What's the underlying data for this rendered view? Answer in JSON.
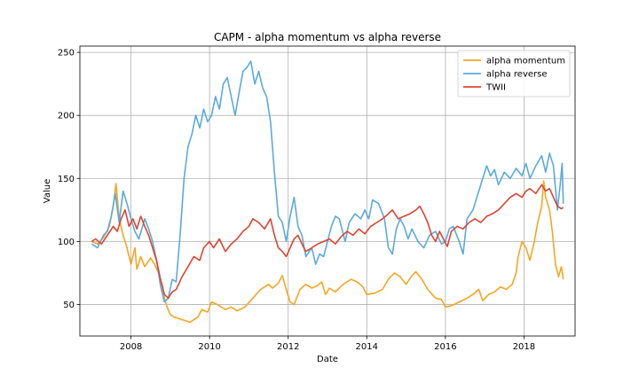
{
  "chart_data": {
    "type": "line",
    "title": "CAPM - alpha momentum vs alpha reverse",
    "xlabel": "Date",
    "ylabel": "Value",
    "xlim": [
      2006.7,
      2019.3
    ],
    "ylim": [
      25,
      255
    ],
    "xticks": [
      2008,
      2010,
      2012,
      2014,
      2016,
      2018
    ],
    "yticks": [
      50,
      100,
      150,
      200,
      250
    ],
    "grid": true,
    "legend_position": "top-right",
    "series": [
      {
        "name": "alpha momentum",
        "color": "#f5a623",
        "points": [
          [
            2007.0,
            100
          ],
          [
            2007.15,
            98
          ],
          [
            2007.3,
            103
          ],
          [
            2007.45,
            112
          ],
          [
            2007.55,
            128
          ],
          [
            2007.62,
            146
          ],
          [
            2007.7,
            118
          ],
          [
            2007.8,
            105
          ],
          [
            2007.9,
            95
          ],
          [
            2008.0,
            82
          ],
          [
            2008.1,
            95
          ],
          [
            2008.15,
            78
          ],
          [
            2008.25,
            88
          ],
          [
            2008.35,
            80
          ],
          [
            2008.5,
            87
          ],
          [
            2008.6,
            82
          ],
          [
            2008.7,
            75
          ],
          [
            2008.8,
            65
          ],
          [
            2008.85,
            55
          ],
          [
            2008.92,
            48
          ],
          [
            2009.0,
            42
          ],
          [
            2009.1,
            40
          ],
          [
            2009.3,
            38
          ],
          [
            2009.5,
            36
          ],
          [
            2009.7,
            40
          ],
          [
            2009.8,
            46
          ],
          [
            2009.95,
            44
          ],
          [
            2010.05,
            52
          ],
          [
            2010.2,
            50
          ],
          [
            2010.4,
            46
          ],
          [
            2010.55,
            48
          ],
          [
            2010.7,
            45
          ],
          [
            2010.9,
            48
          ],
          [
            2011.1,
            55
          ],
          [
            2011.3,
            62
          ],
          [
            2011.5,
            66
          ],
          [
            2011.6,
            63
          ],
          [
            2011.75,
            67
          ],
          [
            2011.85,
            73
          ],
          [
            2011.95,
            62
          ],
          [
            2012.05,
            52
          ],
          [
            2012.15,
            50
          ],
          [
            2012.3,
            62
          ],
          [
            2012.45,
            66
          ],
          [
            2012.6,
            63
          ],
          [
            2012.75,
            65
          ],
          [
            2012.85,
            68
          ],
          [
            2012.95,
            58
          ],
          [
            2013.05,
            63
          ],
          [
            2013.2,
            60
          ],
          [
            2013.4,
            66
          ],
          [
            2013.6,
            70
          ],
          [
            2013.75,
            68
          ],
          [
            2013.9,
            64
          ],
          [
            2014.0,
            58
          ],
          [
            2014.2,
            59
          ],
          [
            2014.4,
            62
          ],
          [
            2014.55,
            70
          ],
          [
            2014.7,
            75
          ],
          [
            2014.85,
            72
          ],
          [
            2015.0,
            66
          ],
          [
            2015.15,
            73
          ],
          [
            2015.25,
            76
          ],
          [
            2015.4,
            70
          ],
          [
            2015.55,
            62
          ],
          [
            2015.75,
            55
          ],
          [
            2015.9,
            54
          ],
          [
            2016.0,
            48
          ],
          [
            2016.15,
            49
          ],
          [
            2016.35,
            52
          ],
          [
            2016.55,
            55
          ],
          [
            2016.7,
            58
          ],
          [
            2016.85,
            62
          ],
          [
            2016.95,
            53
          ],
          [
            2017.1,
            58
          ],
          [
            2017.25,
            60
          ],
          [
            2017.4,
            64
          ],
          [
            2017.55,
            62
          ],
          [
            2017.7,
            66
          ],
          [
            2017.8,
            75
          ],
          [
            2017.85,
            88
          ],
          [
            2017.95,
            100
          ],
          [
            2018.05,
            95
          ],
          [
            2018.15,
            85
          ],
          [
            2018.25,
            98
          ],
          [
            2018.35,
            115
          ],
          [
            2018.45,
            128
          ],
          [
            2018.5,
            148
          ],
          [
            2018.55,
            135
          ],
          [
            2018.65,
            125
          ],
          [
            2018.72,
            108
          ],
          [
            2018.8,
            82
          ],
          [
            2018.88,
            72
          ],
          [
            2018.95,
            80
          ],
          [
            2019.0,
            70
          ]
        ]
      },
      {
        "name": "alpha reverse",
        "color": "#5aaadc",
        "points": [
          [
            2007.0,
            98
          ],
          [
            2007.15,
            95
          ],
          [
            2007.3,
            105
          ],
          [
            2007.4,
            108
          ],
          [
            2007.5,
            120
          ],
          [
            2007.6,
            138
          ],
          [
            2007.7,
            115
          ],
          [
            2007.8,
            140
          ],
          [
            2007.9,
            130
          ],
          [
            2008.0,
            118
          ],
          [
            2008.1,
            108
          ],
          [
            2008.2,
            102
          ],
          [
            2008.35,
            118
          ],
          [
            2008.45,
            110
          ],
          [
            2008.55,
            100
          ],
          [
            2008.65,
            85
          ],
          [
            2008.75,
            65
          ],
          [
            2008.85,
            52
          ],
          [
            2008.95,
            55
          ],
          [
            2009.05,
            70
          ],
          [
            2009.15,
            68
          ],
          [
            2009.25,
            105
          ],
          [
            2009.35,
            150
          ],
          [
            2009.45,
            175
          ],
          [
            2009.55,
            185
          ],
          [
            2009.65,
            200
          ],
          [
            2009.75,
            190
          ],
          [
            2009.85,
            205
          ],
          [
            2009.95,
            195
          ],
          [
            2010.05,
            200
          ],
          [
            2010.15,
            215
          ],
          [
            2010.25,
            205
          ],
          [
            2010.35,
            225
          ],
          [
            2010.45,
            230
          ],
          [
            2010.55,
            215
          ],
          [
            2010.65,
            200
          ],
          [
            2010.75,
            218
          ],
          [
            2010.85,
            235
          ],
          [
            2010.95,
            238
          ],
          [
            2011.05,
            243
          ],
          [
            2011.15,
            225
          ],
          [
            2011.25,
            235
          ],
          [
            2011.35,
            222
          ],
          [
            2011.45,
            215
          ],
          [
            2011.55,
            195
          ],
          [
            2011.65,
            155
          ],
          [
            2011.75,
            120
          ],
          [
            2011.85,
            115
          ],
          [
            2011.95,
            100
          ],
          [
            2012.05,
            120
          ],
          [
            2012.15,
            135
          ],
          [
            2012.25,
            112
          ],
          [
            2012.35,
            105
          ],
          [
            2012.45,
            88
          ],
          [
            2012.6,
            95
          ],
          [
            2012.7,
            82
          ],
          [
            2012.8,
            90
          ],
          [
            2012.9,
            88
          ],
          [
            2013.0,
            100
          ],
          [
            2013.1,
            112
          ],
          [
            2013.2,
            120
          ],
          [
            2013.3,
            118
          ],
          [
            2013.45,
            100
          ],
          [
            2013.55,
            115
          ],
          [
            2013.7,
            122
          ],
          [
            2013.85,
            118
          ],
          [
            2013.95,
            125
          ],
          [
            2014.05,
            118
          ],
          [
            2014.15,
            133
          ],
          [
            2014.3,
            130
          ],
          [
            2014.45,
            118
          ],
          [
            2014.55,
            95
          ],
          [
            2014.65,
            90
          ],
          [
            2014.75,
            110
          ],
          [
            2014.85,
            118
          ],
          [
            2014.95,
            112
          ],
          [
            2015.05,
            102
          ],
          [
            2015.15,
            110
          ],
          [
            2015.3,
            100
          ],
          [
            2015.45,
            95
          ],
          [
            2015.6,
            105
          ],
          [
            2015.75,
            108
          ],
          [
            2015.9,
            98
          ],
          [
            2016.0,
            100
          ],
          [
            2016.1,
            110
          ],
          [
            2016.2,
            112
          ],
          [
            2016.35,
            100
          ],
          [
            2016.45,
            90
          ],
          [
            2016.55,
            118
          ],
          [
            2016.7,
            125
          ],
          [
            2016.85,
            140
          ],
          [
            2016.95,
            150
          ],
          [
            2017.05,
            160
          ],
          [
            2017.15,
            152
          ],
          [
            2017.25,
            157
          ],
          [
            2017.35,
            145
          ],
          [
            2017.5,
            155
          ],
          [
            2017.65,
            150
          ],
          [
            2017.8,
            158
          ],
          [
            2017.95,
            152
          ],
          [
            2018.05,
            162
          ],
          [
            2018.15,
            150
          ],
          [
            2018.3,
            160
          ],
          [
            2018.45,
            168
          ],
          [
            2018.55,
            155
          ],
          [
            2018.65,
            170
          ],
          [
            2018.75,
            160
          ],
          [
            2018.85,
            125
          ],
          [
            2018.92,
            145
          ],
          [
            2018.97,
            162
          ],
          [
            2019.0,
            130
          ]
        ]
      },
      {
        "name": "TWII",
        "color": "#dd4433",
        "points": [
          [
            2007.0,
            100
          ],
          [
            2007.1,
            102
          ],
          [
            2007.25,
            98
          ],
          [
            2007.4,
            105
          ],
          [
            2007.55,
            112
          ],
          [
            2007.65,
            108
          ],
          [
            2007.75,
            118
          ],
          [
            2007.85,
            125
          ],
          [
            2007.95,
            112
          ],
          [
            2008.05,
            118
          ],
          [
            2008.15,
            110
          ],
          [
            2008.25,
            120
          ],
          [
            2008.35,
            112
          ],
          [
            2008.45,
            105
          ],
          [
            2008.55,
            95
          ],
          [
            2008.65,
            85
          ],
          [
            2008.75,
            70
          ],
          [
            2008.85,
            58
          ],
          [
            2008.95,
            55
          ],
          [
            2009.05,
            60
          ],
          [
            2009.15,
            62
          ],
          [
            2009.3,
            72
          ],
          [
            2009.45,
            80
          ],
          [
            2009.6,
            88
          ],
          [
            2009.75,
            85
          ],
          [
            2009.85,
            95
          ],
          [
            2010.0,
            100
          ],
          [
            2010.1,
            95
          ],
          [
            2010.25,
            102
          ],
          [
            2010.4,
            92
          ],
          [
            2010.55,
            98
          ],
          [
            2010.7,
            102
          ],
          [
            2010.85,
            108
          ],
          [
            2011.0,
            112
          ],
          [
            2011.1,
            118
          ],
          [
            2011.25,
            115
          ],
          [
            2011.4,
            110
          ],
          [
            2011.55,
            118
          ],
          [
            2011.65,
            105
          ],
          [
            2011.75,
            95
          ],
          [
            2011.85,
            92
          ],
          [
            2011.95,
            88
          ],
          [
            2012.05,
            95
          ],
          [
            2012.15,
            102
          ],
          [
            2012.25,
            105
          ],
          [
            2012.35,
            98
          ],
          [
            2012.45,
            92
          ],
          [
            2012.6,
            95
          ],
          [
            2012.75,
            98
          ],
          [
            2012.9,
            100
          ],
          [
            2013.05,
            102
          ],
          [
            2013.2,
            98
          ],
          [
            2013.35,
            104
          ],
          [
            2013.5,
            108
          ],
          [
            2013.65,
            105
          ],
          [
            2013.8,
            110
          ],
          [
            2013.95,
            106
          ],
          [
            2014.1,
            112
          ],
          [
            2014.25,
            115
          ],
          [
            2014.4,
            118
          ],
          [
            2014.55,
            122
          ],
          [
            2014.65,
            125
          ],
          [
            2014.8,
            118
          ],
          [
            2014.95,
            120
          ],
          [
            2015.1,
            122
          ],
          [
            2015.25,
            125
          ],
          [
            2015.35,
            128
          ],
          [
            2015.45,
            122
          ],
          [
            2015.55,
            115
          ],
          [
            2015.65,
            105
          ],
          [
            2015.75,
            100
          ],
          [
            2015.85,
            108
          ],
          [
            2015.95,
            102
          ],
          [
            2016.05,
            96
          ],
          [
            2016.15,
            108
          ],
          [
            2016.3,
            112
          ],
          [
            2016.45,
            110
          ],
          [
            2016.6,
            115
          ],
          [
            2016.75,
            118
          ],
          [
            2016.9,
            115
          ],
          [
            2017.05,
            120
          ],
          [
            2017.2,
            122
          ],
          [
            2017.35,
            125
          ],
          [
            2017.5,
            130
          ],
          [
            2017.65,
            135
          ],
          [
            2017.8,
            138
          ],
          [
            2017.95,
            135
          ],
          [
            2018.05,
            140
          ],
          [
            2018.15,
            142
          ],
          [
            2018.3,
            138
          ],
          [
            2018.45,
            145
          ],
          [
            2018.55,
            140
          ],
          [
            2018.65,
            142
          ],
          [
            2018.75,
            135
          ],
          [
            2018.85,
            128
          ],
          [
            2018.95,
            126
          ],
          [
            2019.0,
            127
          ]
        ]
      }
    ]
  }
}
